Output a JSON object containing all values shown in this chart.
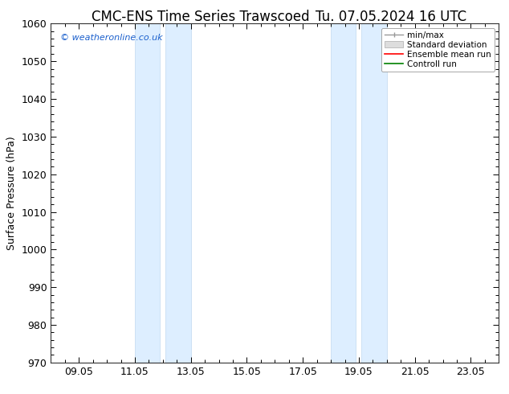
{
  "title_left": "CMC-ENS Time Series Trawscoed",
  "title_right": "Tu. 07.05.2024 16 UTC",
  "ylabel": "Surface Pressure (hPa)",
  "ylim": [
    970,
    1060
  ],
  "yticks": [
    970,
    980,
    990,
    1000,
    1010,
    1020,
    1030,
    1040,
    1050,
    1060
  ],
  "xtick_labels": [
    "09.05",
    "11.05",
    "13.05",
    "15.05",
    "17.05",
    "19.05",
    "21.05",
    "23.05"
  ],
  "watermark": "© weatheronline.co.uk",
  "shaded_bands": [
    {
      "x_start": 11.0,
      "x_end": 11.9
    },
    {
      "x_start": 12.1,
      "x_end": 13.0
    },
    {
      "x_start": 18.0,
      "x_end": 18.9
    },
    {
      "x_start": 19.1,
      "x_end": 20.0
    }
  ],
  "shade_color": "#ddeeff",
  "band_edge_color": "#c0d8f0",
  "background_color": "#ffffff",
  "legend_entries": [
    "min/max",
    "Standard deviation",
    "Ensemble mean run",
    "Controll run"
  ],
  "legend_colors": [
    "#aaaaaa",
    "#cccccc",
    "#ff0000",
    "#008000"
  ],
  "title_fontsize": 12,
  "axis_fontsize": 9,
  "tick_fontsize": 9,
  "xlim": [
    8.0,
    24.0
  ],
  "xtick_positions": [
    9,
    11,
    13,
    15,
    17,
    19,
    21,
    23
  ]
}
